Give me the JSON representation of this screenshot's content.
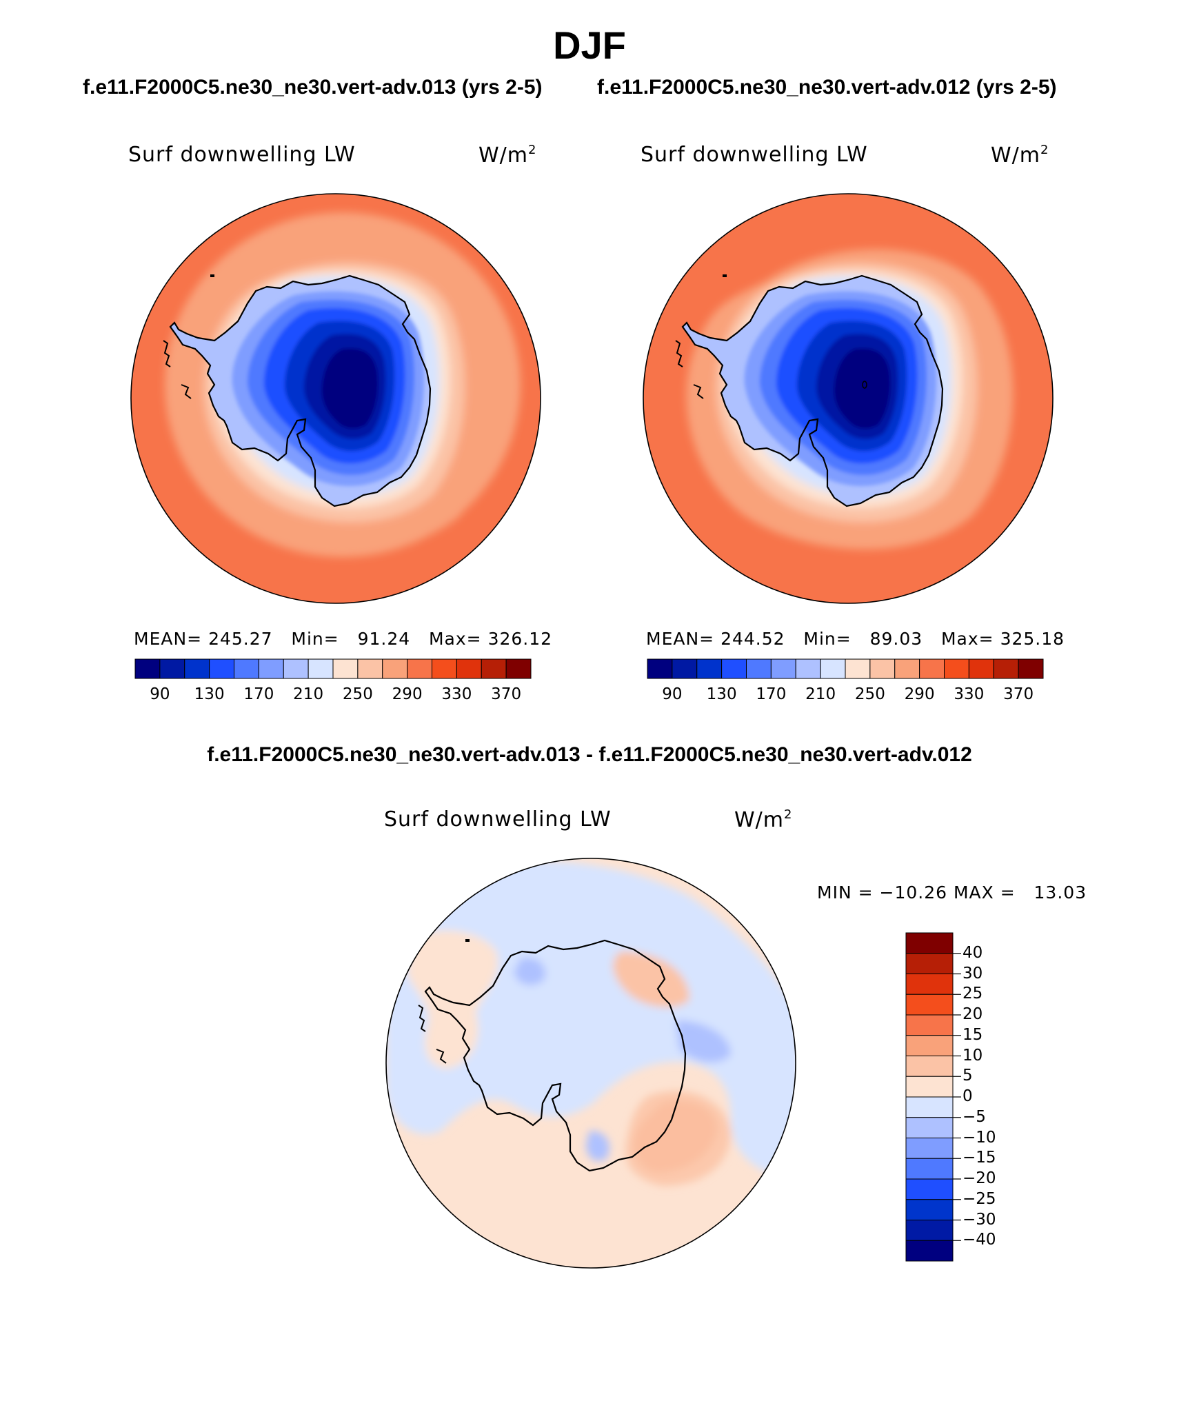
{
  "title": "DJF",
  "colors": {
    "full_field_palette": [
      "#00007f",
      "#0019a3",
      "#0033cc",
      "#1f4fff",
      "#4f79ff",
      "#7f9dff",
      "#aec1ff",
      "#d7e4ff",
      "#fde3d2",
      "#fbc3a6",
      "#f9a27a",
      "#f7744a",
      "#f44e1c",
      "#e0330c",
      "#b61f06",
      "#7f0000"
    ],
    "diff_palette": [
      "#000080",
      "#001aa5",
      "#0035cc",
      "#1f4fff",
      "#4f79ff",
      "#7f9dff",
      "#aec1ff",
      "#d7e4ff",
      "#fde3d2",
      "#fbc3a6",
      "#f9a27a",
      "#f7744a",
      "#f44e1c",
      "#e0330c",
      "#b61f06",
      "#7f0000"
    ],
    "coastline": "#000000"
  },
  "subtitles": {
    "left": "f.e11.F2000C5.ne30_ne30.vert-adv.013 (yrs 2-5)",
    "right": "f.e11.F2000C5.ne30_ne30.vert-adv.012 (yrs 2-5)",
    "diff": "f.e11.F2000C5.ne30_ne30.vert-adv.013 - f.e11.F2000C5.ne30_ne30.vert-adv.012"
  },
  "panels": [
    {
      "variable": "Surf downwelling LW",
      "units": "W/m",
      "units_sup": "2",
      "mean_label": "MEAN=",
      "mean": "245.27",
      "min_label": "Min=",
      "min": "91.24",
      "max_label": "Max=",
      "max": "326.12",
      "colorbar_ticks": [
        "90",
        "130",
        "170",
        "210",
        "250",
        "290",
        "330",
        "370"
      ]
    },
    {
      "variable": "Surf downwelling LW",
      "units": "W/m",
      "units_sup": "2",
      "mean_label": "MEAN=",
      "mean": "244.52",
      "min_label": "Min=",
      "min": "89.03",
      "max_label": "Max=",
      "max": "325.18",
      "colorbar_ticks": [
        "90",
        "130",
        "170",
        "210",
        "250",
        "290",
        "330",
        "370"
      ]
    }
  ],
  "diff_panel": {
    "variable": "Surf downwelling LW",
    "units": "W/m",
    "units_sup": "2",
    "min_label": "MIN =",
    "min": "−10.26",
    "max_label": "MAX =",
    "max": "13.03",
    "colorbar_ticks": [
      "40",
      "30",
      "25",
      "20",
      "15",
      "10",
      "5",
      "0",
      "−5",
      "−10",
      "−15",
      "−20",
      "−25",
      "−30",
      "−40"
    ]
  },
  "chart_data": {
    "type": "heatmap",
    "projection": "south polar stereographic",
    "region": "Antarctica / Southern Ocean",
    "fields": [
      {
        "name": "f.e11.F2000C5.ne30_ne30.vert-adv.013 (yrs 2-5)",
        "mean": 245.27,
        "min": 91.24,
        "max": 326.12
      },
      {
        "name": "f.e11.F2000C5.ne30_ne30.vert-adv.012 (yrs 2-5)",
        "mean": 244.52,
        "min": 89.03,
        "max": 325.18
      },
      {
        "name": "difference",
        "min": -10.26,
        "max": 13.03
      }
    ],
    "full_field_levels": [
      90,
      110,
      130,
      150,
      170,
      190,
      210,
      230,
      250,
      270,
      290,
      310,
      330,
      350,
      370
    ],
    "diff_levels": [
      -40,
      -30,
      -25,
      -20,
      -15,
      -10,
      -5,
      0,
      5,
      10,
      15,
      20,
      25,
      30,
      40
    ]
  }
}
